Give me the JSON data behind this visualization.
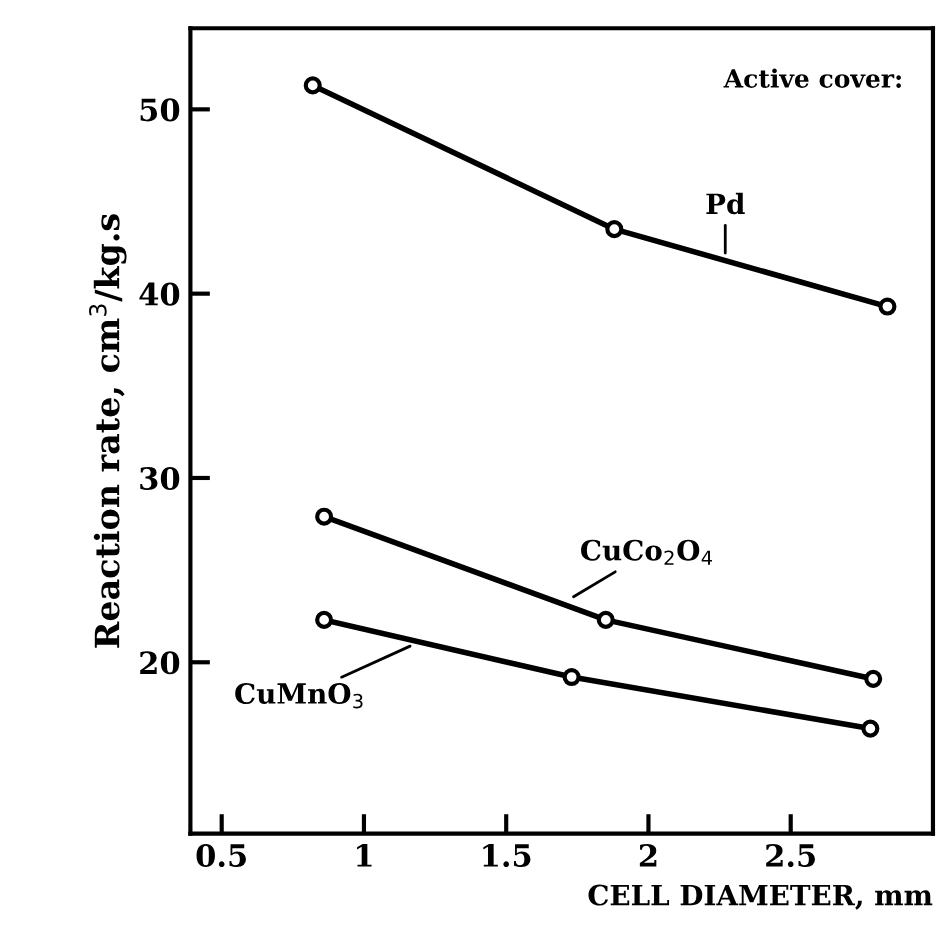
{
  "chart_data": {
    "type": "line",
    "xlabel": "CELL DIAMETER, mm",
    "ylabel": "Reaction rate, cm$^{3}$/kg.s",
    "xlim": [
      0.39,
      3.0
    ],
    "ylim": [
      10.7,
      54.4
    ],
    "xticks": [
      0.5,
      1,
      1.5,
      2,
      2.5
    ],
    "yticks": [
      20,
      30,
      40,
      50
    ],
    "marker": "circle",
    "line_style": "solid",
    "grid": false,
    "legend": false,
    "series": [
      {
        "color": "#000000",
        "x": [
          0.82,
          1.88,
          2.84
        ],
        "values": [
          51.3,
          43.5,
          39.3
        ]
      },
      {
        "color": "#000000",
        "x": [
          0.86,
          1.85,
          2.79
        ],
        "values": [
          27.9,
          22.3,
          19.1
        ]
      },
      {
        "color": "#000000",
        "x": [
          0.86,
          1.73,
          2.78
        ],
        "values": [
          22.3,
          19.2,
          16.4
        ]
      }
    ],
    "annotations": [
      "Active cover:",
      {
        "text": "Pd",
        "x": 2.27,
        "y": 41.9
      },
      {
        "text": "CuCo$_{2}$O$_{4}$",
        "x": 1.72,
        "y": 23.4
      },
      {
        "text": "CuMnO$_{3}$",
        "x": 1.18,
        "y": 21.0
      }
    ]
  }
}
